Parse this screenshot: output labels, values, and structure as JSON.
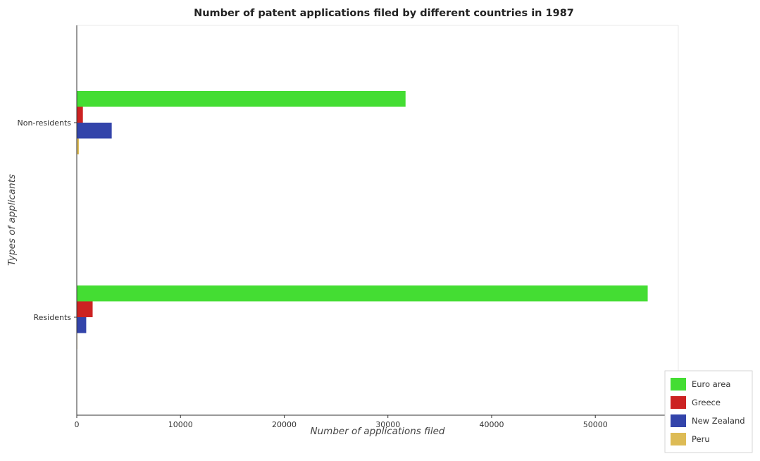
{
  "chart_data": {
    "type": "bar",
    "orientation": "horizontal",
    "title": "Number of patent applications filed by different countries in 1987",
    "xlabel": "Number of applications filed",
    "ylabel": "Types of applicants",
    "categories": [
      "Non-residents",
      "Residents"
    ],
    "series": [
      {
        "name": "Euro area",
        "color": "#44dd33",
        "values": [
          31700,
          55050
        ]
      },
      {
        "name": "Greece",
        "color": "#cc2222",
        "values": [
          590,
          1530
        ]
      },
      {
        "name": "New Zealand",
        "color": "#3344aa",
        "values": [
          3370,
          910
        ]
      },
      {
        "name": "Peru",
        "color": "#ddbb55",
        "values": [
          200,
          45
        ]
      }
    ],
    "xlim": [
      0,
      58000
    ],
    "xticks": [
      0,
      10000,
      20000,
      30000,
      40000,
      50000
    ],
    "xtick_labels": [
      "0",
      "10000",
      "20000",
      "30000",
      "40000",
      "50000"
    ],
    "legend_position": "bottom-right",
    "grid": false
  }
}
